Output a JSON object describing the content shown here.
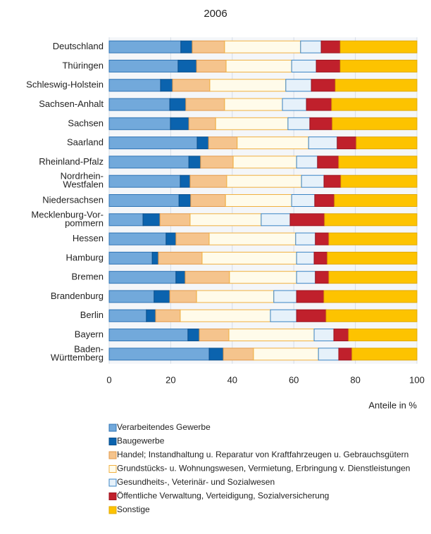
{
  "chart_data": {
    "type": "stacked-bar-horizontal",
    "title": "2006",
    "x_label": "Anteile in %",
    "categories": [
      "Deutschland",
      "Thüringen",
      "Schleswig-Holstein",
      "Sachsen-Anhalt",
      "Sachsen",
      "Saarland",
      "Rheinland-Pfalz",
      "Nordrhein-\nWestfalen",
      "Niedersachsen",
      "Mecklenburg-Vor-\npommern",
      "Hessen",
      "Hamburg",
      "Bremen",
      "Brandenburg",
      "Berlin",
      "Bayern",
      "Baden-\nWürttemberg"
    ],
    "series": [
      {
        "name": "Verarbeitendes Gewerbe",
        "color": "#72a9db",
        "edgecolor": "#2f74b5",
        "values": [
          23.3,
          22.4,
          16.7,
          19.7,
          19.9,
          28.6,
          25.9,
          23.1,
          22.7,
          11.0,
          18.5,
          14.0,
          21.7,
          14.6,
          12.1,
          25.6,
          32.5
        ]
      },
      {
        "name": "Baugewerbe",
        "color": "#0b63ae",
        "edgecolor": "#0b4f8c",
        "values": [
          3.7,
          6.0,
          3.9,
          5.2,
          6.0,
          3.7,
          3.8,
          3.2,
          3.8,
          5.5,
          3.2,
          2.0,
          3.0,
          5.1,
          3.0,
          3.7,
          4.6
        ]
      },
      {
        "name": "Handel; Instandhaltung u. Reparatur von Kraftfahrzeugen u. Gebrauchsgütern",
        "color": "#f5c48d",
        "edgecolor": "#e39a4a",
        "values": [
          10.5,
          9.6,
          12.1,
          12.6,
          8.7,
          9.3,
          10.6,
          11.9,
          11.3,
          9.8,
          10.8,
          14.2,
          14.4,
          8.7,
          8.0,
          9.6,
          9.8
        ]
      },
      {
        "name": "Grundstücks- u. Wohnungswesen, Vermietung, Erbringung v. Dienstleistungen",
        "color": "#fffbea",
        "edgecolor": "#f0b040",
        "values": [
          24.7,
          21.3,
          24.7,
          18.8,
          23.5,
          23.2,
          20.6,
          24.3,
          21.5,
          23.1,
          28.1,
          30.7,
          21.8,
          25.1,
          29.3,
          27.7,
          21.1
        ]
      },
      {
        "name": "Gesundheits-, Veterinär- und Sozialwesen",
        "color": "#e6f1fa",
        "edgecolor": "#3b84c4",
        "values": [
          6.7,
          8.0,
          8.3,
          7.8,
          7.1,
          9.3,
          6.8,
          7.3,
          7.5,
          9.4,
          6.4,
          5.7,
          6.1,
          7.4,
          8.5,
          6.4,
          6.6
        ]
      },
      {
        "name": "Öffentliche Verwaltung, Verteidigung, Sozialversicherung",
        "color": "#c0202c",
        "edgecolor": "#9c1520",
        "values": [
          6.2,
          7.8,
          7.8,
          8.2,
          7.3,
          6.2,
          6.9,
          5.5,
          6.4,
          11.2,
          4.4,
          4.3,
          4.4,
          8.9,
          9.6,
          4.8,
          4.3
        ]
      },
      {
        "name": "Sonstige",
        "color": "#fdc300",
        "edgecolor": "#e0a800",
        "values": [
          24.9,
          24.9,
          26.5,
          27.7,
          27.5,
          19.7,
          25.4,
          24.7,
          26.8,
          30.0,
          28.6,
          29.1,
          28.6,
          30.2,
          29.5,
          22.2,
          21.1
        ]
      }
    ],
    "xlim": [
      0,
      100
    ],
    "xticks": [
      0,
      20,
      40,
      60,
      80,
      100
    ],
    "grid": true
  }
}
